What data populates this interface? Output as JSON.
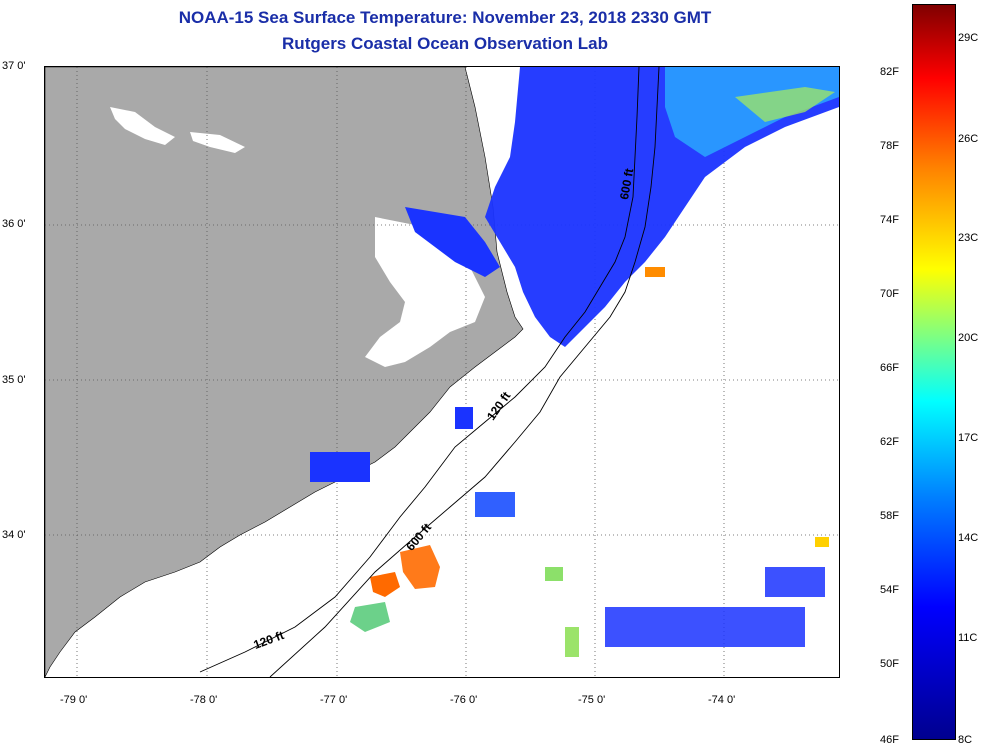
{
  "header": {
    "title": "NOAA-15 Sea Surface Temperature:  November 23, 2018 2330 GMT",
    "subtitle": "Rutgers Coastal Ocean Observation Lab"
  },
  "map": {
    "latitude_labels": [
      "37 0'",
      "36 0'",
      "35 0'",
      "34 0'"
    ],
    "longitude_labels": [
      "-79 0'",
      "-78 0'",
      "-77 0'",
      "-76 0'",
      "-75 0'",
      "-74 0'"
    ],
    "isobath_labels": [
      "600 ft",
      "120 ft",
      "600 ft",
      "120 ft"
    ],
    "colors": {
      "land": "#a9a9a9",
      "water_no_data": "#ffffff",
      "cold": "#0000ff",
      "warm": "#ff6a00"
    }
  },
  "colorbar": {
    "fahrenheit_labels": [
      "82F",
      "78F",
      "74F",
      "70F",
      "66F",
      "62F",
      "58F",
      "54F",
      "50F",
      "46F"
    ],
    "celsius_labels": [
      "29C",
      "26C",
      "23C",
      "20C",
      "17C",
      "14C",
      "11C",
      "8C"
    ]
  }
}
